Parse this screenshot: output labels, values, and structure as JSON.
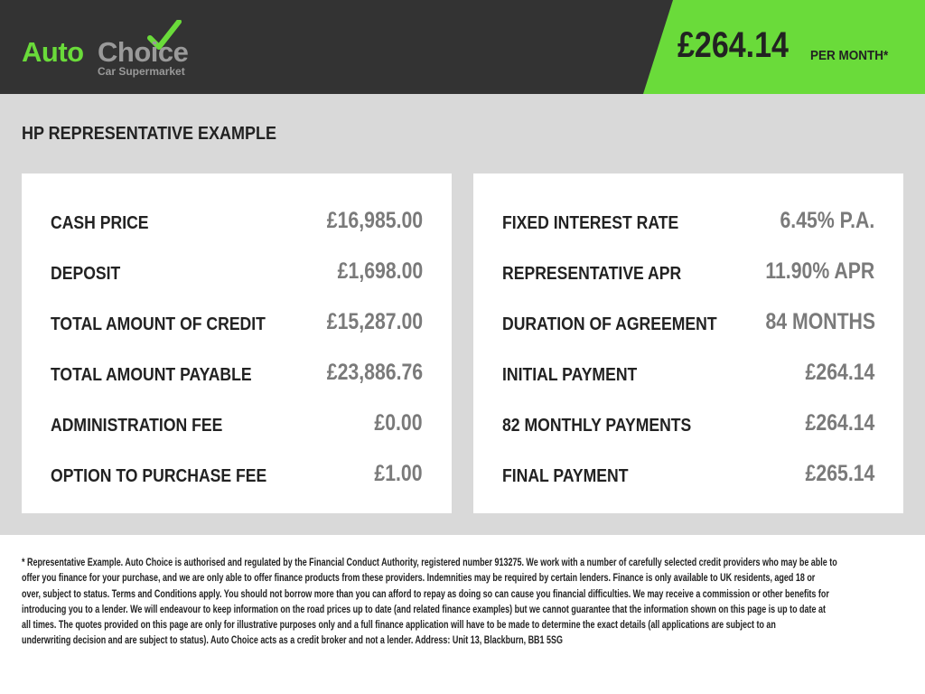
{
  "brand": {
    "name_part1": "Auto",
    "name_part2": "Choice",
    "tagline": "Car Supermarket"
  },
  "header": {
    "monthly_price": "£264.14",
    "per_month_label": "PER MONTH*"
  },
  "section_title": "HP REPRESENTATIVE EXAMPLE",
  "left_card": [
    {
      "label": "CASH PRICE",
      "value": "£16,985.00"
    },
    {
      "label": "DEPOSIT",
      "value": "£1,698.00"
    },
    {
      "label": "TOTAL AMOUNT OF CREDIT",
      "value": "£15,287.00"
    },
    {
      "label": "TOTAL AMOUNT PAYABLE",
      "value": "£23,886.76"
    },
    {
      "label": "ADMINISTRATION FEE",
      "value": "£0.00"
    },
    {
      "label": "OPTION TO PURCHASE FEE",
      "value": "£1.00"
    }
  ],
  "right_card": [
    {
      "label": "FIXED INTEREST RATE",
      "value": "6.45% P.A."
    },
    {
      "label": "REPRESENTATIVE APR",
      "value": "11.90% APR"
    },
    {
      "label": "DURATION OF AGREEMENT",
      "value": "84 MONTHS"
    },
    {
      "label": "INITIAL PAYMENT",
      "value": "£264.14"
    },
    {
      "label": "82 MONTHLY PAYMENTS",
      "value": "£264.14"
    },
    {
      "label": "FINAL PAYMENT",
      "value": "£265.14"
    }
  ],
  "disclaimer_lines": [
    "* Representative Example. Auto Choice is authorised and regulated by the Financial Conduct Authority, registered number 913275. We work with a number of carefully selected credit providers who may be able to",
    "offer you finance for your purchase, and we are only able to offer finance products from these providers. Indemnities may be required by certain lenders. Finance is only available to UK residents, aged 18 or",
    "over, subject to status. Terms and Conditions apply. You should not borrow more than you can afford to repay as doing so can cause you financial difficulties. We may receive a commission or other benefits for",
    "introducing you to a lender. We will endeavour to keep information on the road prices up to date (and related finance examples) but we cannot guarantee that the information shown on this page is up to date at",
    "all times. The quotes provided on this page are only for illustrative purposes only and a full finance application will have to be made to determine the exact details (all applications are subject to an",
    "underwriting decision and are subject to status). Auto Choice acts as a credit broker and not a lender. Address: Unit 13, Blackburn, BB1 5SG"
  ],
  "colors": {
    "header_bg": "#333333",
    "accent_green": "#6adb3a",
    "band_bg": "#d9d9d9",
    "value_grey": "#7a7a7a"
  }
}
